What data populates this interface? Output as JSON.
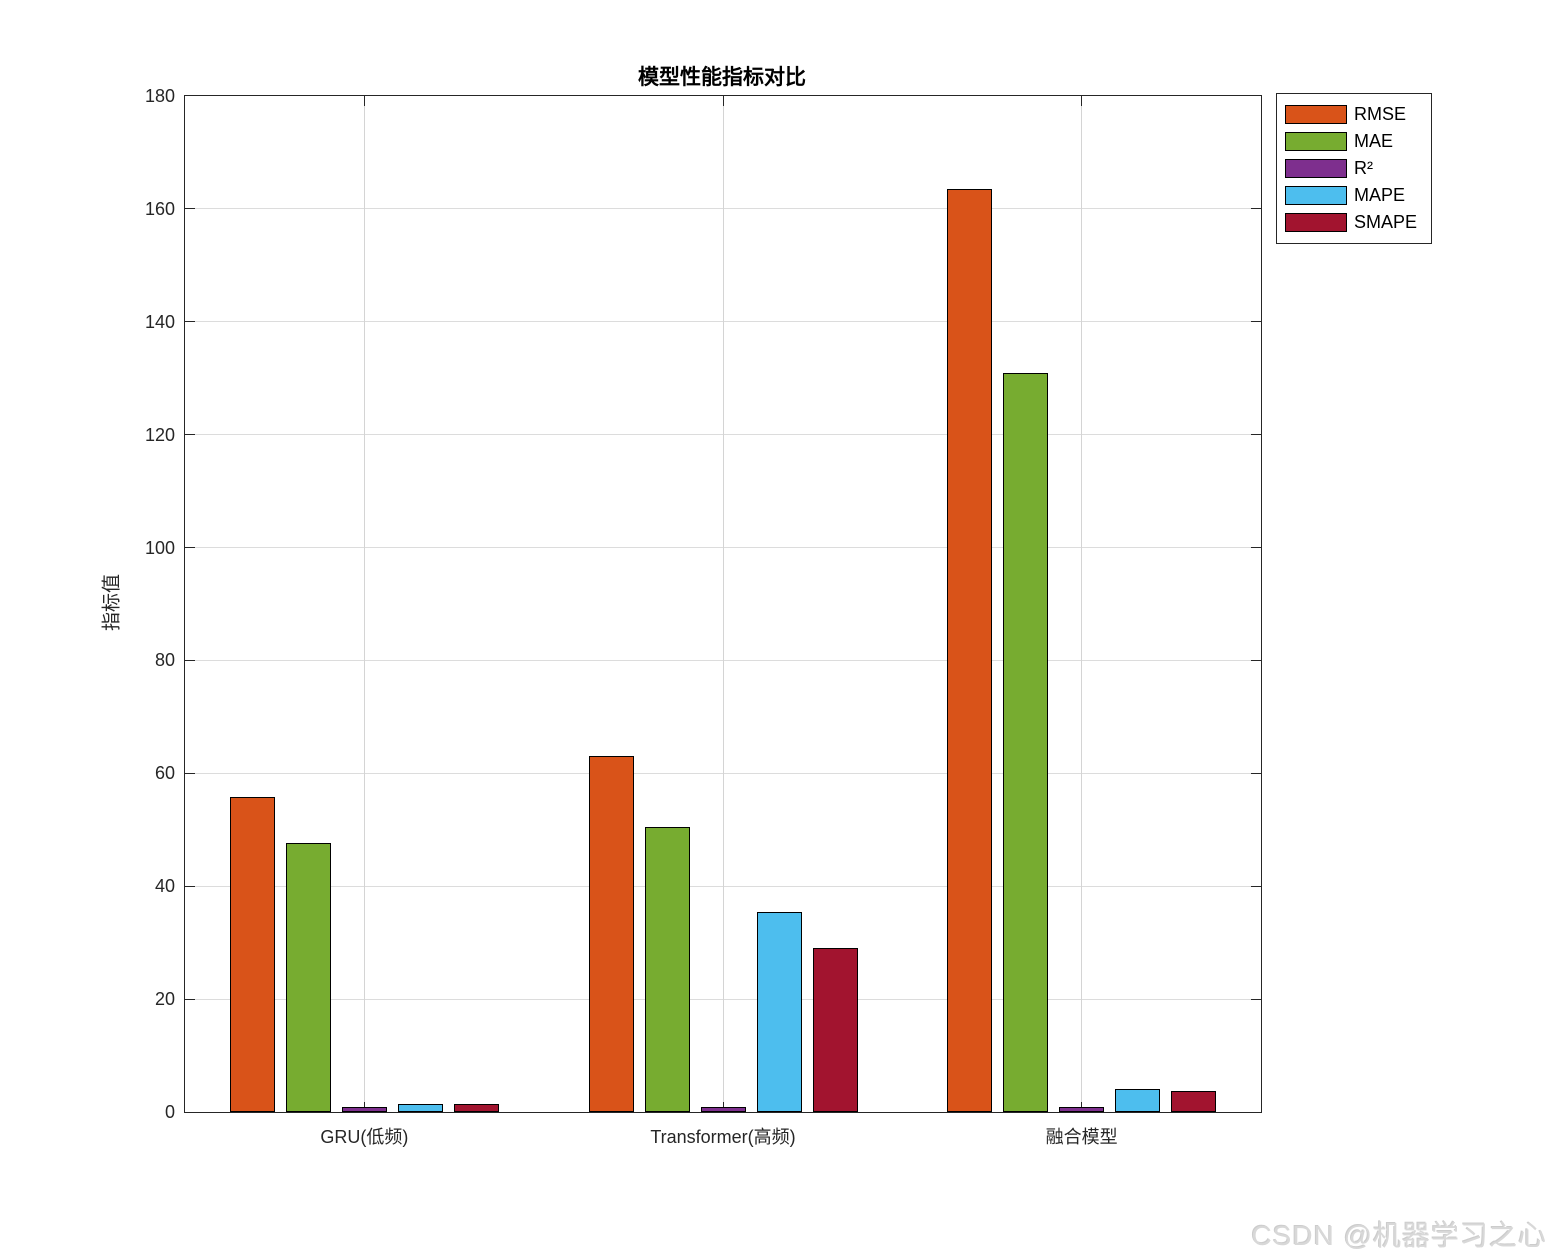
{
  "page": {
    "watermark": "CSDN @机器学习之心"
  },
  "chart_data": {
    "type": "bar",
    "title": "模型性能指标对比",
    "xlabel": "",
    "ylabel": "指标值",
    "categories": [
      "GRU(低频)",
      "Transformer(高频)",
      "融合模型"
    ],
    "series": [
      {
        "name": "RMSE",
        "color": "#D95319",
        "values": [
          55.8,
          63.1,
          163.6
        ]
      },
      {
        "name": "MAE",
        "color": "#77AC30",
        "values": [
          47.6,
          50.5,
          130.9
        ]
      },
      {
        "name": "R²",
        "color": "#7E2F8E",
        "values": [
          0.9,
          0.9,
          0.95
        ]
      },
      {
        "name": "MAPE",
        "color": "#4DBEEE",
        "values": [
          1.4,
          35.5,
          4.0
        ]
      },
      {
        "name": "SMAPE",
        "color": "#A2142F",
        "values": [
          1.4,
          29.0,
          3.8
        ]
      }
    ],
    "ylim": [
      0,
      180
    ],
    "yticks": [
      0,
      20,
      40,
      60,
      80,
      100,
      120,
      140,
      160,
      180
    ],
    "grid": true,
    "legend_position": "outside-top-right",
    "axis_color": "#262626",
    "grid_color": "#dcdcdc",
    "bar_edge_color": "#000000"
  }
}
